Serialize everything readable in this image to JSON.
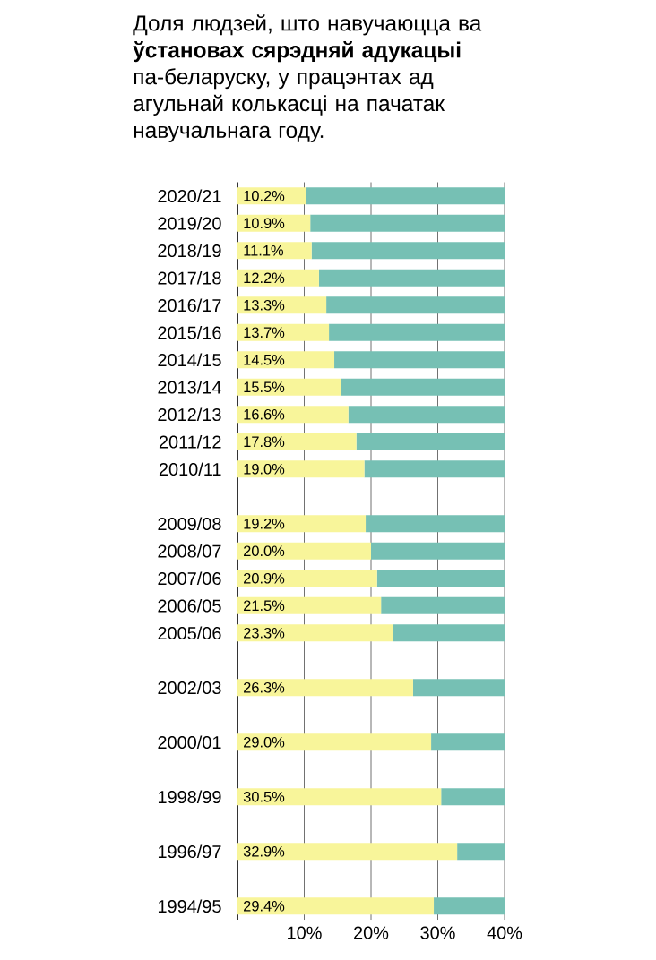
{
  "chart_data": {
    "type": "bar",
    "orientation": "horizontal",
    "stacked": true,
    "title": "Доля людзей, што навучаюцца ва **ўстановах сярэдняй адукацыі** па-беларуску, у працэнтах ад агульнай колькасці на пачатак навучальнага году.",
    "categories": [
      "2020/21",
      "2019/20",
      "2018/19",
      "2017/18",
      "2016/17",
      "2015/16",
      "2014/15",
      "2013/14",
      "2012/13",
      "2011/12",
      "2010/11",
      null,
      "2009/08",
      "2008/07",
      "2007/06",
      "2006/05",
      "2005/06",
      null,
      "2002/03",
      null,
      "2000/01",
      null,
      "1998/99",
      null,
      "1996/97",
      null,
      "1994/95"
    ],
    "series": [
      {
        "color": "#f8f59a",
        "values": [
          10.2,
          10.9,
          11.1,
          12.2,
          13.3,
          13.7,
          14.5,
          15.5,
          16.6,
          17.8,
          19.0,
          null,
          19.2,
          20.0,
          20.9,
          21.5,
          23.3,
          null,
          26.3,
          null,
          29.0,
          null,
          30.5,
          null,
          32.9,
          null,
          29.4
        ],
        "value_labels": [
          "10.2%",
          "10.9%",
          "11.1%",
          "12.2%",
          "13.3%",
          "13.7%",
          "14.5%",
          "15.5%",
          "16.6%",
          "17.8%",
          "19.0%",
          null,
          "19.2%",
          "20.0%",
          "20.9%",
          "21.5%",
          "23.3%",
          null,
          "26.3%",
          null,
          "29.0%",
          null,
          "30.5%",
          null,
          "32.9%",
          null,
          "29.4%"
        ]
      },
      {
        "color": "#76c0b4",
        "values": [
          29.8,
          29.1,
          28.9,
          27.8,
          26.7,
          26.3,
          25.5,
          24.5,
          23.4,
          22.2,
          21.0,
          null,
          20.8,
          20.0,
          19.1,
          18.5,
          16.7,
          null,
          13.7,
          null,
          11.0,
          null,
          9.5,
          null,
          7.1,
          null,
          10.6
        ]
      }
    ],
    "xlim": [
      0,
      40
    ],
    "xticks": [
      {
        "value": 10,
        "label": "10%"
      },
      {
        "value": 20,
        "label": "20%"
      },
      {
        "value": 30,
        "label": "30%"
      },
      {
        "value": 40,
        "label": "40%"
      }
    ],
    "grid": "x"
  }
}
